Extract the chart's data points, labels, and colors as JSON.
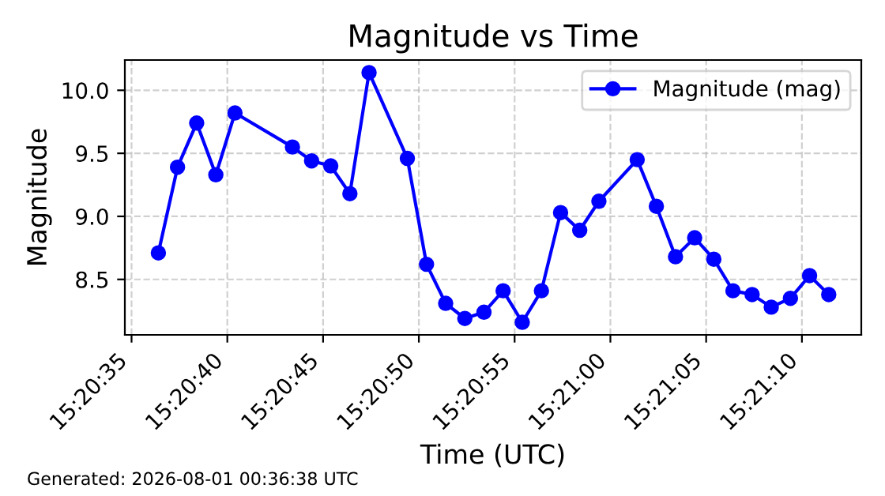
{
  "chart_data": {
    "type": "line",
    "title": "Magnitude vs Time",
    "xlabel": "Time (UTC)",
    "ylabel": "Magnitude",
    "x": [
      "2026-08-01T15:20:36.4",
      "2026-08-01T15:20:37.4",
      "2026-08-01T15:20:38.4",
      "2026-08-01T15:20:39.4",
      "2026-08-01T15:20:40.4",
      "2026-08-01T15:20:43.4",
      "2026-08-01T15:20:44.4",
      "2026-08-01T15:20:45.4",
      "2026-08-01T15:20:46.4",
      "2026-08-01T15:20:47.4",
      "2026-08-01T15:20:49.4",
      "2026-08-01T15:20:50.4",
      "2026-08-01T15:20:51.4",
      "2026-08-01T15:20:52.4",
      "2026-08-01T15:20:53.4",
      "2026-08-01T15:20:54.4",
      "2026-08-01T15:20:55.4",
      "2026-08-01T15:20:56.4",
      "2026-08-01T15:20:57.4",
      "2026-08-01T15:20:58.4",
      "2026-08-01T15:20:59.4",
      "2026-08-01T15:21:01.4",
      "2026-08-01T15:21:02.4",
      "2026-08-01T15:21:03.4",
      "2026-08-01T15:21:04.4",
      "2026-08-01T15:21:05.4",
      "2026-08-01T15:21:06.4",
      "2026-08-01T15:21:07.4",
      "2026-08-01T15:21:08.4",
      "2026-08-01T15:21:09.4",
      "2026-08-01T15:21:10.4",
      "2026-08-01T15:21:11.4"
    ],
    "series": [
      {
        "name": "Magnitude (mag)",
        "color": "#0000ff",
        "values": [
          8.71,
          9.39,
          9.74,
          9.33,
          9.82,
          9.55,
          9.44,
          9.4,
          9.18,
          10.14,
          9.46,
          8.62,
          8.31,
          8.19,
          8.24,
          8.41,
          8.16,
          8.41,
          9.03,
          8.89,
          9.12,
          9.45,
          9.08,
          8.68,
          8.83,
          8.66,
          8.41,
          8.38,
          8.28,
          8.35,
          8.53,
          8.38
        ]
      }
    ],
    "xlim": [
      "2026-08-01T15:20:34.65",
      "2026-08-01T15:21:13.1"
    ],
    "xticks": [
      {
        "value": "2026-08-01T15:20:35",
        "label": "15:20:35"
      },
      {
        "value": "2026-08-01T15:20:40",
        "label": "15:20:40"
      },
      {
        "value": "2026-08-01T15:20:45",
        "label": "15:20:45"
      },
      {
        "value": "2026-08-01T15:20:50",
        "label": "15:20:50"
      },
      {
        "value": "2026-08-01T15:20:55",
        "label": "15:20:55"
      },
      {
        "value": "2026-08-01T15:21:00",
        "label": "15:21:00"
      },
      {
        "value": "2026-08-01T15:21:05",
        "label": "15:21:05"
      },
      {
        "value": "2026-08-01T15:21:10",
        "label": "15:21:10"
      }
    ],
    "ylim": [
      8.06,
      10.24
    ],
    "yticks": [
      8.5,
      {
        "value": 9,
        "label": "9.0"
      },
      9.5,
      {
        "value": 10,
        "label": "10.0"
      }
    ],
    "grid": true,
    "legend": "top right",
    "marker": "circle",
    "line_style": "solid",
    "annotations": [
      "Generated: 2026-08-01 00:36:38 UTC"
    ]
  }
}
